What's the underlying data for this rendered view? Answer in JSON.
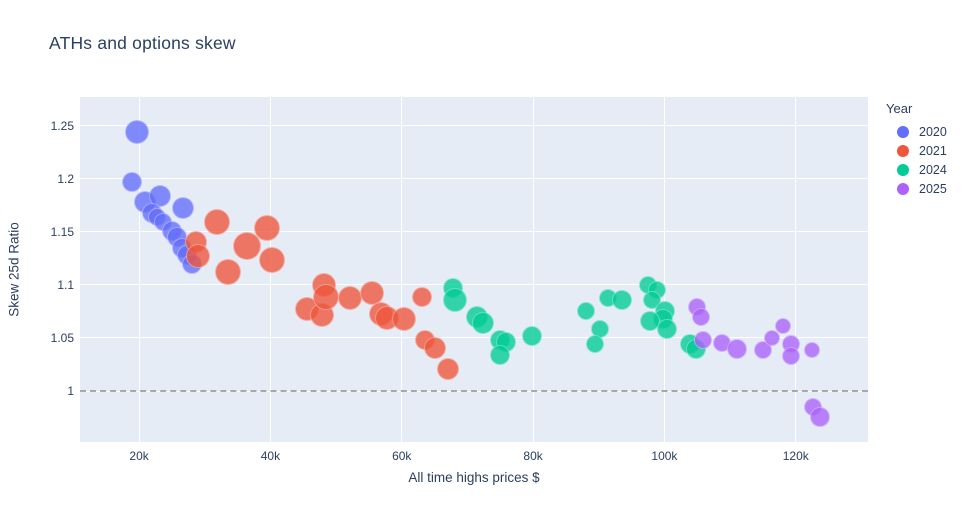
{
  "chart_data": {
    "type": "scatter",
    "title": "ATHs and options skew",
    "xlabel": "All time highs prices $",
    "ylabel": "Skew 25d Ratio",
    "plot_bgcolor": "#E5ECF6",
    "text_color": "#2a3f5f",
    "grid": true,
    "xaxis": {
      "range": [
        11000,
        131000
      ],
      "ticks": [
        {
          "v": 20000,
          "label": "20k"
        },
        {
          "v": 40000,
          "label": "40k"
        },
        {
          "v": 60000,
          "label": "60k"
        },
        {
          "v": 80000,
          "label": "80k"
        },
        {
          "v": 100000,
          "label": "100k"
        },
        {
          "v": 120000,
          "label": "120k"
        }
      ]
    },
    "yaxis": {
      "range": [
        0.952,
        1.277
      ],
      "ticks": [
        {
          "v": 1,
          "label": "1"
        },
        {
          "v": 1.05,
          "label": "1.05"
        },
        {
          "v": 1.1,
          "label": "1.1"
        },
        {
          "v": 1.15,
          "label": "1.15"
        },
        {
          "v": 1.2,
          "label": "1.2"
        },
        {
          "v": 1.25,
          "label": "1.25"
        }
      ]
    },
    "refline": {
      "y": 1.0,
      "style": "dashed",
      "color": "#9b9b9b"
    },
    "legend": {
      "title": "Year",
      "position": "top-right"
    },
    "point_format": [
      "x_usd",
      "y_ratio",
      "marker_radius_px"
    ],
    "series": [
      {
        "name": "2020",
        "color": "#636EFA",
        "points": [
          [
            19700,
            1.244,
            12
          ],
          [
            18900,
            1.197,
            10
          ],
          [
            20900,
            1.178,
            11
          ],
          [
            23200,
            1.184,
            11
          ],
          [
            22000,
            1.168,
            10
          ],
          [
            22700,
            1.164,
            9
          ],
          [
            23700,
            1.159,
            9
          ],
          [
            26700,
            1.172,
            11
          ],
          [
            25000,
            1.151,
            10
          ],
          [
            25800,
            1.145,
            10
          ],
          [
            26500,
            1.135,
            10
          ],
          [
            27300,
            1.128,
            10
          ],
          [
            28100,
            1.12,
            10
          ]
        ]
      },
      {
        "name": "2021",
        "color": "#EF553B",
        "points": [
          [
            28600,
            1.14,
            11
          ],
          [
            29000,
            1.127,
            12
          ],
          [
            31900,
            1.159,
            13
          ],
          [
            33600,
            1.112,
            13
          ],
          [
            36400,
            1.137,
            14
          ],
          [
            39500,
            1.154,
            13
          ],
          [
            40300,
            1.123,
            13
          ],
          [
            45600,
            1.077,
            12
          ],
          [
            47900,
            1.072,
            12
          ],
          [
            48200,
            1.1,
            12
          ],
          [
            48400,
            1.089,
            13
          ],
          [
            52100,
            1.088,
            12
          ],
          [
            55500,
            1.092,
            12
          ],
          [
            56800,
            1.073,
            12
          ],
          [
            57700,
            1.069,
            12
          ],
          [
            60300,
            1.068,
            12
          ],
          [
            63100,
            1.089,
            10
          ],
          [
            63600,
            1.048,
            10
          ],
          [
            65100,
            1.041,
            11
          ],
          [
            67100,
            1.021,
            11
          ]
        ]
      },
      {
        "name": "2024",
        "color": "#00CC96",
        "points": [
          [
            67800,
            1.097,
            10
          ],
          [
            68100,
            1.086,
            12
          ],
          [
            71500,
            1.07,
            11
          ],
          [
            72300,
            1.064,
            11
          ],
          [
            74900,
            1.048,
            10
          ],
          [
            75800,
            1.046,
            10
          ],
          [
            75000,
            1.034,
            10
          ],
          [
            79800,
            1.052,
            10
          ],
          [
            88100,
            1.075,
            9
          ],
          [
            91400,
            1.088,
            9
          ],
          [
            93500,
            1.086,
            10
          ],
          [
            90200,
            1.058,
            9
          ],
          [
            89400,
            1.044,
            9
          ],
          [
            97500,
            1.1,
            9
          ],
          [
            98900,
            1.095,
            9
          ],
          [
            98100,
            1.086,
            9
          ],
          [
            100100,
            1.075,
            10
          ],
          [
            99800,
            1.068,
            10
          ],
          [
            97800,
            1.066,
            10
          ],
          [
            100400,
            1.058,
            10
          ],
          [
            103900,
            1.044,
            10
          ],
          [
            104800,
            1.04,
            10
          ]
        ]
      },
      {
        "name": "2025",
        "color": "#AB63FA",
        "points": [
          [
            105000,
            1.079,
            9
          ],
          [
            105500,
            1.07,
            9
          ],
          [
            105900,
            1.048,
            9
          ],
          [
            108800,
            1.045,
            9
          ],
          [
            111000,
            1.04,
            10
          ],
          [
            115000,
            1.039,
            9
          ],
          [
            116400,
            1.05,
            8
          ],
          [
            118100,
            1.061,
            8
          ],
          [
            119200,
            1.044,
            9
          ],
          [
            119200,
            1.033,
            9
          ],
          [
            122500,
            1.039,
            8
          ],
          [
            122700,
            0.985,
            9
          ],
          [
            123700,
            0.976,
            10
          ]
        ]
      }
    ]
  }
}
